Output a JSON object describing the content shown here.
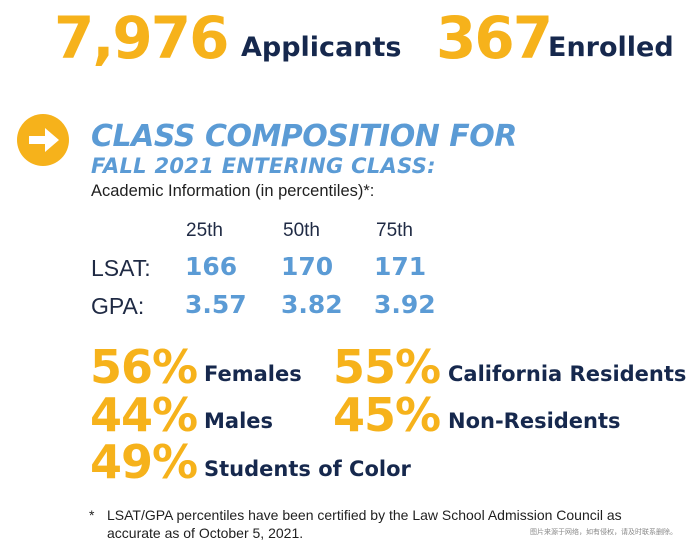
{
  "headline": {
    "applicants_value": "7,976",
    "applicants_label": "Applicants",
    "enrolled_value": "367",
    "enrolled_label": "Enrolled"
  },
  "section": {
    "title_line1": "CLASS COMPOSITION FOR",
    "title_line2": "FALL 2021 ENTERING CLASS:",
    "caption": "Academic Information (in percentiles)*:"
  },
  "percentiles": {
    "headers": [
      "25th",
      "50th",
      "75th"
    ],
    "rows": [
      {
        "label": "LSAT:",
        "values": [
          "166",
          "170",
          "171"
        ]
      },
      {
        "label": "GPA:",
        "values": [
          "3.57",
          "3.82",
          "3.92"
        ]
      }
    ]
  },
  "stats": {
    "left": [
      {
        "pct": "56%",
        "label": "Females"
      },
      {
        "pct": "44%",
        "label": "Males"
      },
      {
        "pct": "49%",
        "label": "Students of Color"
      }
    ],
    "right": [
      {
        "pct": "55%",
        "label": "California Residents"
      },
      {
        "pct": "45%",
        "label": "Non-Residents"
      }
    ]
  },
  "footnote": {
    "marker": "*",
    "text": "LSAT/GPA percentiles have been certified by the Law School Admission Council as accurate as of October 5, 2021."
  },
  "watermark": "图片来源于网络，如有侵权，请及时联系删除。",
  "colors": {
    "accent_gold": "#f6b21b",
    "navy": "#16284d",
    "accent_blue": "#5b9bd5"
  }
}
